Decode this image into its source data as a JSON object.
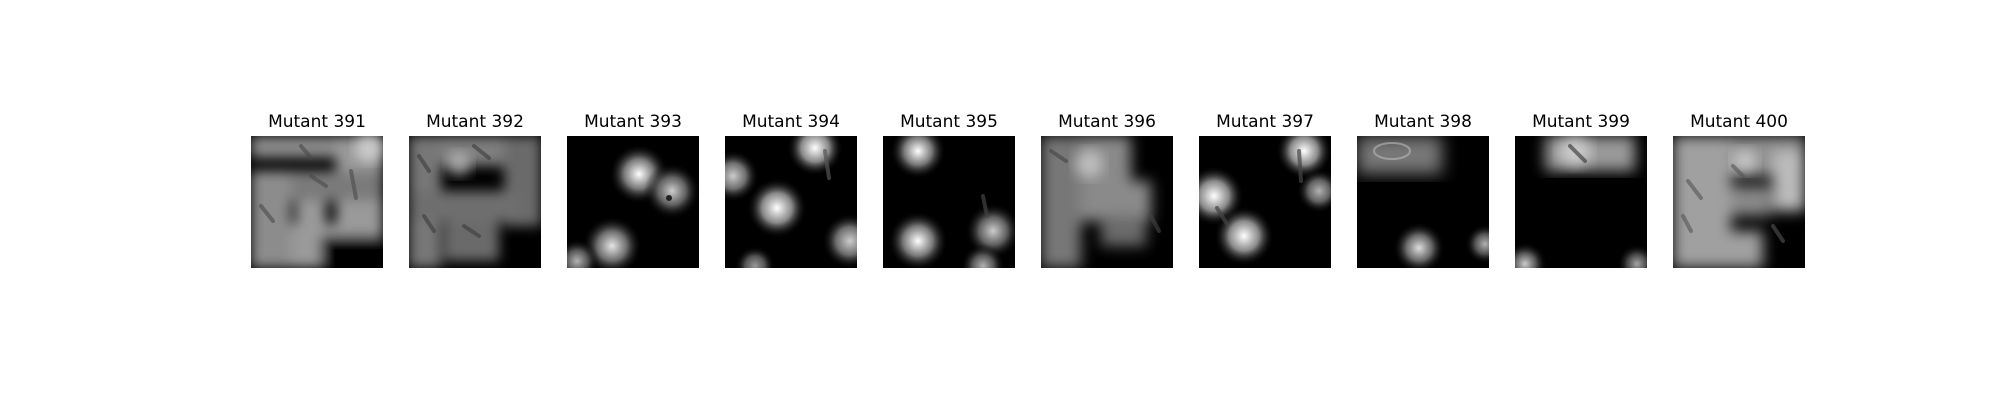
{
  "figure": {
    "panels": [
      {
        "title": "Mutant 391"
      },
      {
        "title": "Mutant 392"
      },
      {
        "title": "Mutant 393"
      },
      {
        "title": "Mutant 394"
      },
      {
        "title": "Mutant 395"
      },
      {
        "title": "Mutant 396"
      },
      {
        "title": "Mutant 397"
      },
      {
        "title": "Mutant 398"
      },
      {
        "title": "Mutant 399"
      },
      {
        "title": "Mutant 400"
      }
    ]
  }
}
